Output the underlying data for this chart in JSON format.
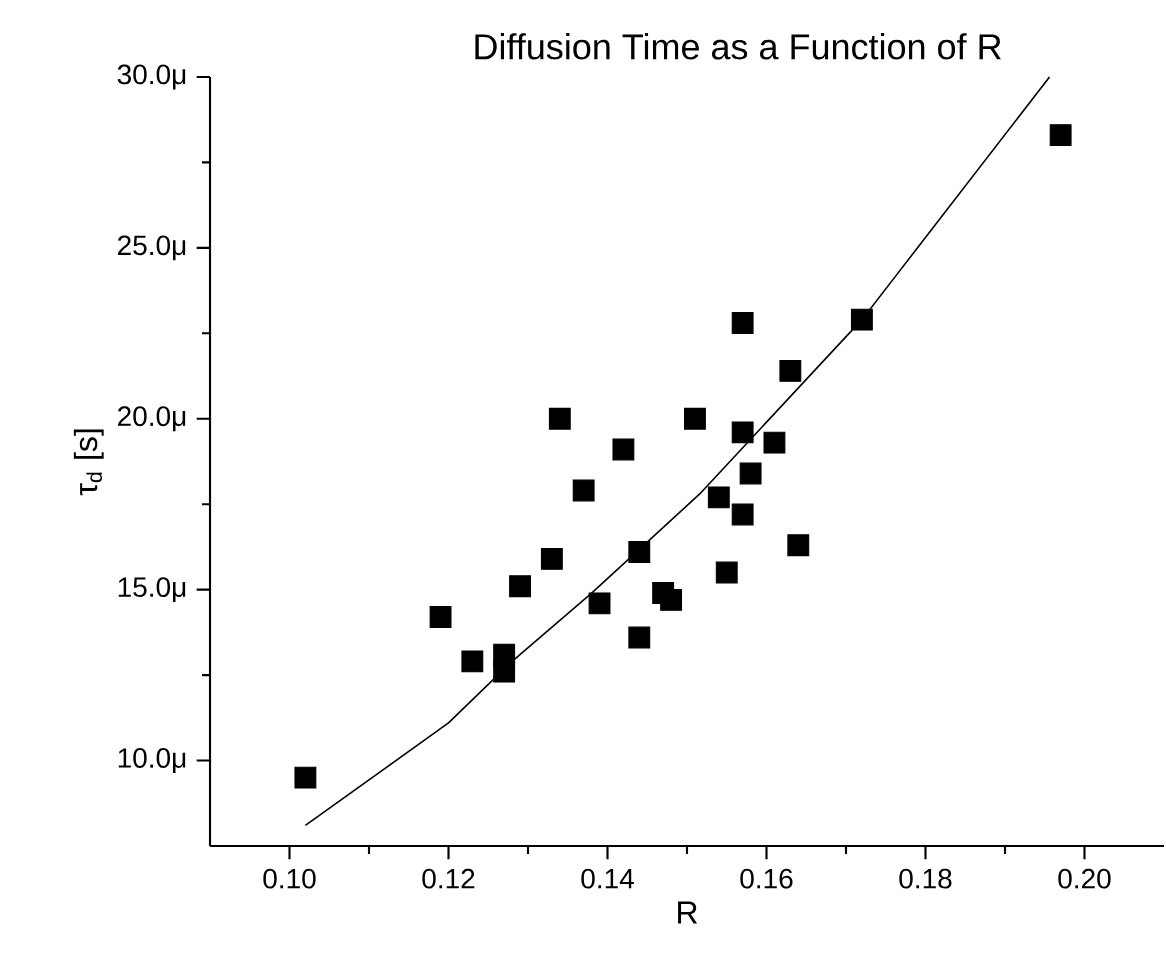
{
  "chart_data": {
    "type": "scatter",
    "title": "Diffusion Time as a Function of R",
    "xlabel": "R",
    "ylabel": "τ$_{d}$ [s]",
    "xlim": [
      0.09,
      0.21
    ],
    "ylim": [
      7.5,
      30
    ],
    "xticks": [
      {
        "value": 0.1,
        "label": "0.10"
      },
      {
        "value": 0.12,
        "label": "0.12"
      },
      {
        "value": 0.14,
        "label": "0.14"
      },
      {
        "value": 0.16,
        "label": "0.16"
      },
      {
        "value": 0.18,
        "label": "0.18"
      },
      {
        "value": 0.2,
        "label": "0.20"
      }
    ],
    "yticks": [
      {
        "value": 10,
        "label": "10.0μ"
      },
      {
        "value": 15,
        "label": "15.0μ"
      },
      {
        "value": 20,
        "label": "20.0μ"
      },
      {
        "value": 25,
        "label": "25.0μ"
      },
      {
        "value": 30,
        "label": "30.0μ"
      }
    ],
    "grid": false,
    "series": [
      {
        "color": "#000000",
        "marker": "square",
        "x": [
          0.102,
          0.119,
          0.123,
          0.127,
          0.127,
          0.129,
          0.133,
          0.134,
          0.137,
          0.139,
          0.142,
          0.144,
          0.144,
          0.147,
          0.148,
          0.151,
          0.157,
          0.172,
          0.163,
          0.157,
          0.161,
          0.158,
          0.154,
          0.157,
          0.164,
          0.155,
          0.197
        ],
        "values": [
          9.5,
          14.2,
          12.9,
          13.1,
          12.6,
          15.1,
          15.9,
          20.0,
          17.9,
          14.6,
          19.1,
          16.1,
          13.6,
          14.9,
          14.7,
          20.0,
          22.8,
          22.9,
          21.4,
          19.6,
          19.3,
          18.4,
          17.7,
          17.2,
          16.3,
          15.5,
          28.3
        ]
      },
      {
        "type": "line",
        "color": "#000000",
        "marker": "none",
        "x": [
          0.102,
          0.12,
          0.128,
          0.138,
          0.1516,
          0.172,
          0.176,
          0.1956
        ],
        "values": [
          8.1,
          11.1,
          12.9,
          14.9,
          17.8,
          22.9,
          24.1,
          30.0
        ]
      }
    ]
  }
}
